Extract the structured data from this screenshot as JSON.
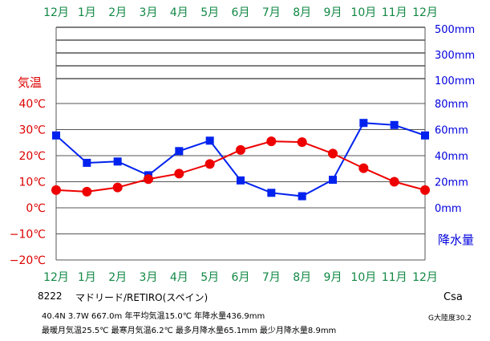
{
  "chart_data": {
    "type": "line",
    "months": [
      "12月",
      "1月",
      "2月",
      "3月",
      "4月",
      "5月",
      "6月",
      "7月",
      "8月",
      "9月",
      "10月",
      "11月",
      "12月"
    ],
    "temp_axis": {
      "label": "気温",
      "ylim": [
        -20,
        40
      ],
      "ticks": [
        "40℃",
        "30℃",
        "20℃",
        "10℃",
        "0℃",
        "−10℃",
        "−20℃"
      ]
    },
    "precip_axis": {
      "label": "降水量",
      "ylim": [
        0,
        80
      ],
      "ticks": [
        "80mm",
        "60mm",
        "40mm",
        "20mm",
        "0mm"
      ],
      "upper_ticks": [
        "500mm",
        "300mm",
        "100mm"
      ]
    },
    "series": [
      {
        "unit": "℃",
        "color": "#ee0000",
        "marker": "circle",
        "values": [
          6.8,
          6.2,
          7.8,
          11.0,
          13.1,
          16.8,
          22.2,
          25.5,
          25.2,
          20.8,
          15.2,
          10.0,
          6.8
        ]
      },
      {
        "unit": "mm",
        "color": "#0022ee",
        "marker": "square",
        "values": [
          55.5,
          34.5,
          35.5,
          25.0,
          43.5,
          51.5,
          21.0,
          11.5,
          8.9,
          21.5,
          65.1,
          63.5,
          55.5
        ]
      }
    ],
    "grid": true
  },
  "station": {
    "id": "8222",
    "name": "マドリード/RETIRO(スペイン)",
    "climate": "Csa",
    "climate_note": "G大陸度30.2",
    "line1": "40.4N  3.7W  667.0m 年平均気温15.0℃  年降水量436.9mm",
    "line2": "最暖月気温25.5℃ 最寒月気温6.2℃ 最多月降水量65.1mm 最少月降水量8.9mm"
  },
  "colors": {
    "month_label": "#118844",
    "temp_axis": "#dd0000",
    "precip_axis": "#0000dd",
    "grid": "#555555"
  }
}
